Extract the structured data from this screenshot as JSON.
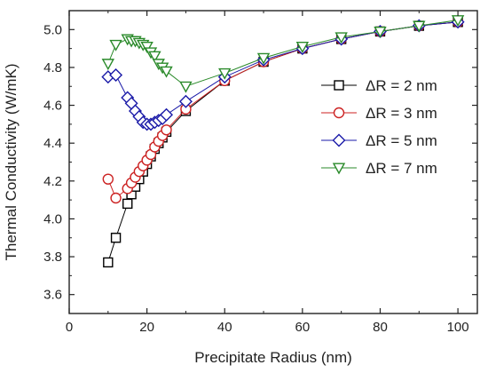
{
  "chart_data": {
    "type": "scatter",
    "title": "",
    "xlabel": "Precipitate Radius (nm)",
    "ylabel": "Thermal Conductivity (W/mK)",
    "xlim": [
      0,
      105
    ],
    "ylim": [
      3.5,
      5.1
    ],
    "xticks": [
      0,
      20,
      40,
      60,
      80,
      100
    ],
    "yticks": [
      3.6,
      3.8,
      4.0,
      4.2,
      4.4,
      4.6,
      4.8,
      5.0
    ],
    "xtick_labels": [
      "0",
      "20",
      "40",
      "60",
      "80",
      "100"
    ],
    "ytick_labels": [
      "3.6",
      "3.8",
      "4.0",
      "4.2",
      "4.4",
      "4.6",
      "4.8",
      "5.0"
    ],
    "grid": false,
    "legend_position": "center-right",
    "series": [
      {
        "name": "ΔR = 2 nm",
        "marker": "square",
        "color": "#000000",
        "x": [
          10,
          12,
          15,
          16,
          17,
          18,
          19,
          20,
          21,
          22,
          23,
          24,
          25,
          30,
          40,
          50,
          60,
          70,
          80,
          90,
          100
        ],
        "y": [
          3.77,
          3.9,
          4.08,
          4.13,
          4.17,
          4.21,
          4.25,
          4.29,
          4.33,
          4.37,
          4.4,
          4.43,
          4.46,
          4.57,
          4.73,
          4.83,
          4.9,
          4.95,
          4.99,
          5.02,
          5.04
        ]
      },
      {
        "name": "ΔR = 3 nm",
        "marker": "circle",
        "color": "#cc2222",
        "x": [
          10,
          12,
          15,
          16,
          17,
          18,
          19,
          20,
          21,
          22,
          23,
          24,
          25,
          30,
          40,
          50,
          60,
          70,
          80,
          90,
          100
        ],
        "y": [
          4.21,
          4.11,
          4.16,
          4.19,
          4.22,
          4.25,
          4.28,
          4.31,
          4.34,
          4.38,
          4.41,
          4.44,
          4.47,
          4.58,
          4.73,
          4.83,
          4.9,
          4.95,
          4.99,
          5.02,
          5.04
        ]
      },
      {
        "name": "ΔR = 5 nm",
        "marker": "diamond",
        "color": "#1a1aa8",
        "x": [
          10,
          12,
          15,
          16,
          17,
          18,
          19,
          20,
          21,
          22,
          23,
          24,
          25,
          30,
          40,
          50,
          60,
          70,
          80,
          90,
          100
        ],
        "y": [
          4.75,
          4.76,
          4.64,
          4.61,
          4.57,
          4.54,
          4.51,
          4.5,
          4.5,
          4.51,
          4.52,
          4.53,
          4.55,
          4.62,
          4.75,
          4.84,
          4.9,
          4.95,
          4.99,
          5.02,
          5.04
        ]
      },
      {
        "name": "ΔR = 7 nm",
        "marker": "triangle-down",
        "color": "#2a8a2a",
        "x": [
          10,
          12,
          15,
          16,
          17,
          18,
          19,
          20,
          21,
          22,
          23,
          24,
          25,
          30,
          40,
          50,
          60,
          70,
          80,
          90,
          100
        ],
        "y": [
          4.82,
          4.92,
          4.95,
          4.94,
          4.94,
          4.93,
          4.92,
          4.91,
          4.88,
          4.86,
          4.82,
          4.8,
          4.78,
          4.7,
          4.77,
          4.85,
          4.91,
          4.96,
          4.99,
          5.02,
          5.05
        ]
      }
    ]
  }
}
